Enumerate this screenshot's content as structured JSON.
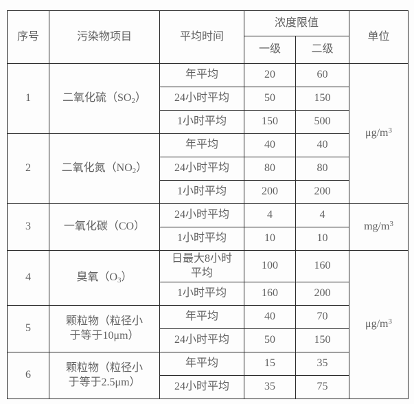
{
  "page": {
    "background": "#fdfdfd"
  },
  "table": {
    "border_color": "#2b2b2b",
    "text_color": "#616161",
    "header": {
      "seq": "序号",
      "pollutant": "污染物项目",
      "avg_time": "平均时间",
      "limit": "浓度限值",
      "level1": "一级",
      "level2": "二级",
      "unit": "单位"
    },
    "groups": [
      {
        "seq": "1",
        "pollutant": {
          "line1_pre": "二氧化硫（SO",
          "sub": "2",
          "line1_post": "）",
          "line2": ""
        },
        "rows": [
          {
            "time": "年平均",
            "l1": "20",
            "l2": "60"
          },
          {
            "time": "24小时平均",
            "l1": "50",
            "l2": "150"
          },
          {
            "time": "1小时平均",
            "l1": "150",
            "l2": "500"
          }
        ]
      },
      {
        "seq": "2",
        "pollutant": {
          "line1_pre": "二氧化氮（NO",
          "sub": "2",
          "line1_post": "）",
          "line2": ""
        },
        "rows": [
          {
            "time": "年平均",
            "l1": "40",
            "l2": "40"
          },
          {
            "time": "24小时平均",
            "l1": "80",
            "l2": "80"
          },
          {
            "time": "1小时平均",
            "l1": "200",
            "l2": "200"
          }
        ]
      },
      {
        "seq": "3",
        "pollutant": {
          "line1_pre": "一氧化碳（CO）",
          "sub": "",
          "line1_post": "",
          "line2": ""
        },
        "rows": [
          {
            "time": "24小时平均",
            "l1": "4",
            "l2": "4"
          },
          {
            "time": "1小时平均",
            "l1": "10",
            "l2": "10"
          }
        ]
      },
      {
        "seq": "4",
        "pollutant": {
          "line1_pre": "臭氧（O",
          "sub": "3",
          "line1_post": "）",
          "line2": ""
        },
        "rows": [
          {
            "time": "日最大8小时",
            "time2": "平均",
            "l1": "100",
            "l2": "160"
          },
          {
            "time": "1小时平均",
            "l1": "160",
            "l2": "200"
          }
        ]
      },
      {
        "seq": "5",
        "pollutant": {
          "line1_pre": "颗粒物（粒径小",
          "sub": "",
          "line1_post": "",
          "line2": "于等于10μm）"
        },
        "rows": [
          {
            "time": "年平均",
            "l1": "40",
            "l2": "70"
          },
          {
            "time": "24小时平均",
            "l1": "50",
            "l2": "150"
          }
        ]
      },
      {
        "seq": "6",
        "pollutant": {
          "line1_pre": "颗粒物（粒径小",
          "sub": "",
          "line1_post": "",
          "line2": "于等于2.5μm）"
        },
        "rows": [
          {
            "time": "年平均",
            "l1": "15",
            "l2": "35"
          },
          {
            "time": "24小时平均",
            "l1": "35",
            "l2": "75"
          }
        ]
      }
    ],
    "units": [
      {
        "base": "μg/m",
        "sup": "3"
      },
      {
        "base": "mg/m",
        "sup": "3"
      },
      {
        "base": "μg/m",
        "sup": "3"
      }
    ]
  }
}
